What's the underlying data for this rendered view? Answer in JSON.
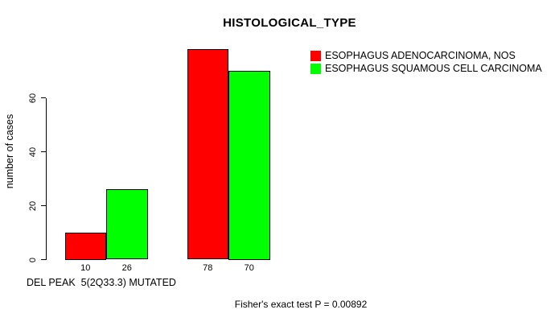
{
  "chart_data": {
    "type": "bar",
    "title": "HISTOLOGICAL_TYPE",
    "ylabel": "number of cases",
    "xlabel": "DEL PEAK  5(2Q33.3) MUTATED",
    "footnote": "Fisher's exact test P = 0.00892",
    "grid": false,
    "legend_position": "right",
    "groups": 2,
    "ylim": [
      0,
      81
    ],
    "yticks": [
      0,
      20,
      40,
      60
    ],
    "series": [
      {
        "name": "ESOPHAGUS ADENOCARCINOMA, NOS",
        "color": "#ff0000",
        "values": [
          10,
          78
        ]
      },
      {
        "name": "ESOPHAGUS SQUAMOUS CELL CARCINOMA",
        "color": "#00ff00",
        "values": [
          26,
          70
        ]
      }
    ],
    "bar_value_labels": [
      "10",
      "26",
      "78",
      "70"
    ],
    "background_color": "#ffffff",
    "text_color": "#000000"
  }
}
